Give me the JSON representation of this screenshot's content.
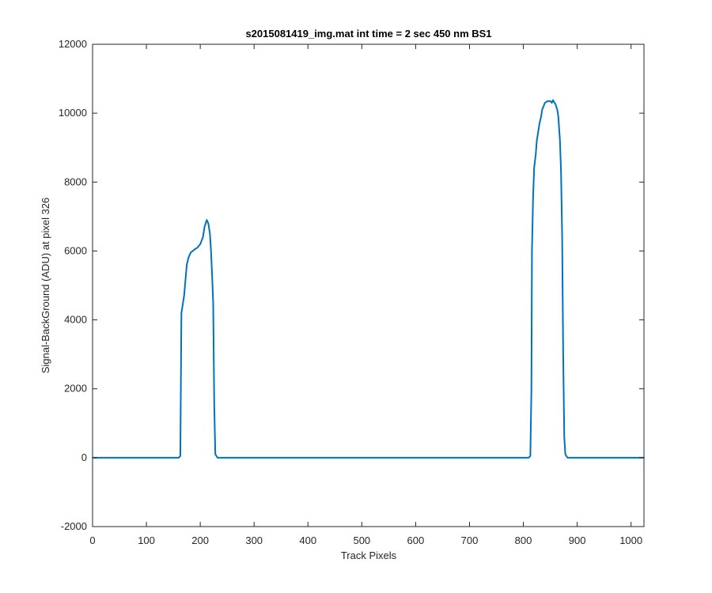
{
  "chart_data": {
    "type": "line",
    "title": "s2015081419_img.mat int time = 2 sec  450 nm BS1",
    "xlabel": "Track Pixels",
    "ylabel": "Signal-BackGround (ADU) at pixel 326",
    "xlim": [
      0,
      1024
    ],
    "ylim": [
      -2000,
      12000
    ],
    "xticks": [
      "0",
      "100",
      "200",
      "300",
      "400",
      "500",
      "600",
      "700",
      "800",
      "900",
      "1000"
    ],
    "yticks": [
      "-2000",
      "0",
      "2000",
      "4000",
      "6000",
      "8000",
      "10000",
      "12000"
    ],
    "grid": false,
    "series_color": "#0072BD",
    "series": [
      {
        "x": [
          0,
          50,
          100,
          150,
          160,
          163,
          165,
          167,
          170,
          175,
          178,
          182,
          186,
          190,
          195,
          200,
          205,
          208,
          210,
          212,
          215,
          218,
          220,
          222,
          224,
          226,
          228,
          232,
          260,
          300,
          400,
          500,
          600,
          700,
          800,
          810,
          813,
          815,
          816,
          818,
          820,
          823,
          825,
          828,
          830,
          833,
          835,
          840,
          845,
          850,
          853,
          855,
          858,
          860,
          863,
          865,
          868,
          870,
          872,
          874,
          876,
          878,
          882,
          900,
          950,
          1000,
          1024
        ],
        "y": [
          0,
          0,
          0,
          0,
          0,
          50,
          4200,
          4400,
          4700,
          5600,
          5800,
          5950,
          6000,
          6050,
          6100,
          6200,
          6400,
          6700,
          6800,
          6900,
          6800,
          6500,
          6000,
          5300,
          4500,
          1500,
          100,
          0,
          0,
          0,
          0,
          0,
          0,
          0,
          0,
          0,
          50,
          2000,
          6000,
          7500,
          8400,
          8800,
          9200,
          9500,
          9700,
          9900,
          10100,
          10300,
          10350,
          10350,
          10300,
          10380,
          10300,
          10250,
          10100,
          9900,
          9200,
          8300,
          6500,
          3000,
          600,
          100,
          0,
          0,
          0,
          0,
          0
        ]
      }
    ]
  }
}
